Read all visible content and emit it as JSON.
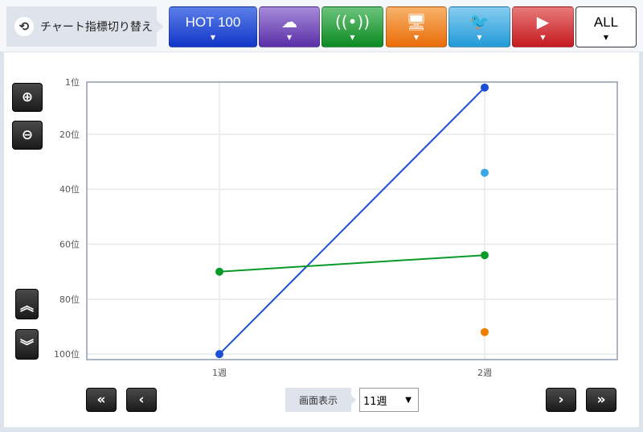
{
  "header": {
    "switch_label": "チャート指標切り替え",
    "switch_icon": "sync-icon"
  },
  "chart_buttons": [
    {
      "label": "HOT 100",
      "icon": "",
      "color": "#1f45d8"
    },
    {
      "label": "",
      "icon": "download-cd-icon",
      "color": "#6e3fb8"
    },
    {
      "label": "",
      "icon": "radio-antenna-icon",
      "color": "#159a2e"
    },
    {
      "label": "",
      "icon": "pc-dvd-icon",
      "color": "#f07c10"
    },
    {
      "label": "",
      "icon": "twitter-icon",
      "color": "#35a7e4"
    },
    {
      "label": "",
      "icon": "youtube-icon",
      "color": "#d4232a"
    },
    {
      "label": "ALL",
      "icon": "",
      "color": "#ffffff"
    }
  ],
  "controls": {
    "display_label": "画面表示",
    "display_value": "11週"
  },
  "chart_data": {
    "type": "line",
    "x": [
      "1週",
      "2週"
    ],
    "xlim": [
      0.5,
      2.5
    ],
    "ylim": [
      1,
      102
    ],
    "y_inverted": true,
    "yticks": [
      {
        "v": 1,
        "label": "1位"
      },
      {
        "v": 20,
        "label": "20位"
      },
      {
        "v": 40,
        "label": "40位"
      },
      {
        "v": 60,
        "label": "60位"
      },
      {
        "v": 80,
        "label": "80位"
      },
      {
        "v": 100,
        "label": "100位"
      }
    ],
    "grid": true,
    "series": [
      {
        "color": "#1a4fd6",
        "values": [
          100,
          3
        ]
      },
      {
        "color": "#3aa8e6",
        "values": [
          null,
          34
        ]
      },
      {
        "color": "#0a9a2a",
        "values": [
          70,
          64
        ]
      },
      {
        "color": "#f07d00",
        "values": [
          null,
          92
        ]
      }
    ]
  }
}
